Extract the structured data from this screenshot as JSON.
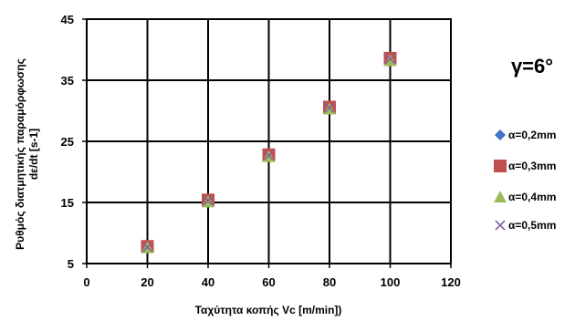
{
  "chart_data": {
    "type": "scatter",
    "title": "",
    "annotation": "γ=6°",
    "xlabel": "Ταχύτητα κοπής Vc [m/min])",
    "ylabel_line1": "Ρυθμός διατμητικής παραμόρφωσης",
    "ylabel_line2": "dε/dt [s-1]",
    "xlim": [
      0,
      120
    ],
    "ylim": [
      5,
      45
    ],
    "xticks": [
      "0",
      "20",
      "40",
      "60",
      "80",
      "100",
      "120"
    ],
    "yticks": [
      "5",
      "15",
      "25",
      "35",
      "45"
    ],
    "grid": true,
    "legend_position": "right",
    "series": [
      {
        "name": "α=0,2mm",
        "marker": "diamond",
        "color": "#4472C4",
        "x": [
          20,
          40,
          60,
          80,
          100
        ],
        "y": [
          7.8,
          15.4,
          22.8,
          30.6,
          38.6
        ]
      },
      {
        "name": "α=0,3mm",
        "marker": "square",
        "color": "#C0504D",
        "x": [
          20,
          40,
          60,
          80,
          100
        ],
        "y": [
          7.8,
          15.4,
          22.8,
          30.6,
          38.6
        ]
      },
      {
        "name": "α=0,4mm",
        "marker": "triangle",
        "color": "#9BBB59",
        "x": [
          20,
          40,
          60,
          80,
          100
        ],
        "y": [
          7.6,
          15.1,
          22.5,
          30.3,
          38.2
        ]
      },
      {
        "name": "α=0,5mm",
        "marker": "x",
        "color": "#8064A2",
        "x": [
          20,
          40,
          60,
          80,
          100
        ],
        "y": [
          7.7,
          15.3,
          22.7,
          30.5,
          38.5
        ]
      }
    ]
  }
}
